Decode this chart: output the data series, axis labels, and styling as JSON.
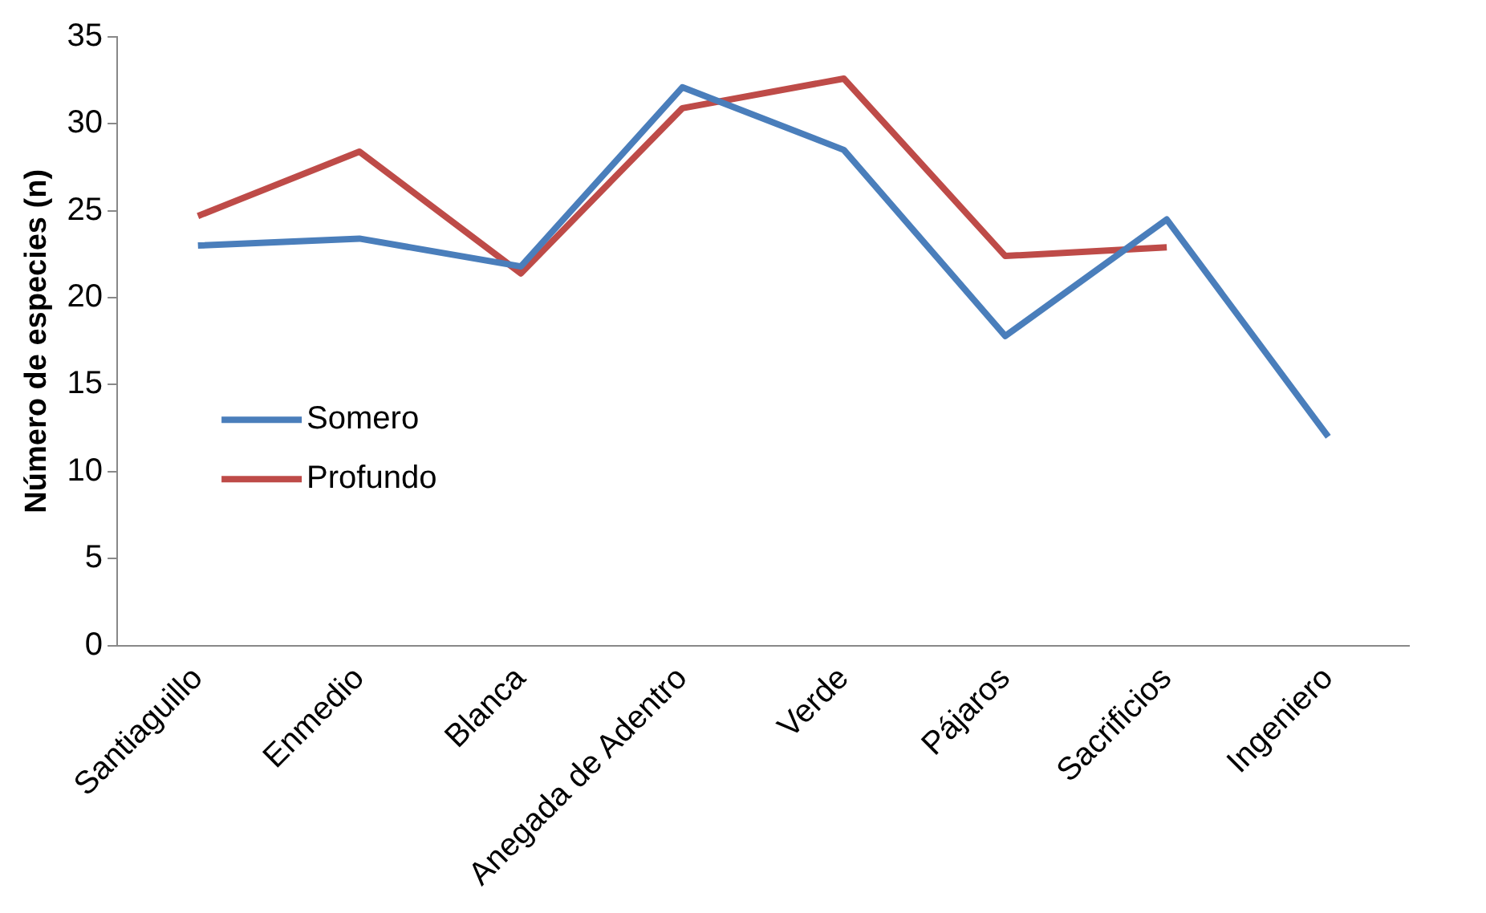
{
  "chart_data": {
    "type": "line",
    "ylabel": "Número de especies (n)",
    "categories": [
      "Santiaguillo",
      "Enmedio",
      "Blanca",
      "Anegada de Adentro",
      "Verde",
      "Pájaros",
      "Sacrificios",
      "Ingeniero"
    ],
    "series": [
      {
        "name": "Somero",
        "color": "#4a7ebb",
        "values": [
          23.0,
          23.4,
          21.8,
          32.1,
          28.5,
          17.8,
          24.5,
          12.0
        ]
      },
      {
        "name": "Profundo",
        "color": "#be4b48",
        "values": [
          24.7,
          28.4,
          21.4,
          30.9,
          32.6,
          22.4,
          22.9,
          null
        ]
      }
    ],
    "ylim": [
      0,
      35
    ],
    "yticks": [
      0,
      5,
      10,
      15,
      20,
      25,
      30,
      35
    ],
    "grid": false,
    "legend": "left",
    "marker": "none",
    "line_style": "solid"
  }
}
